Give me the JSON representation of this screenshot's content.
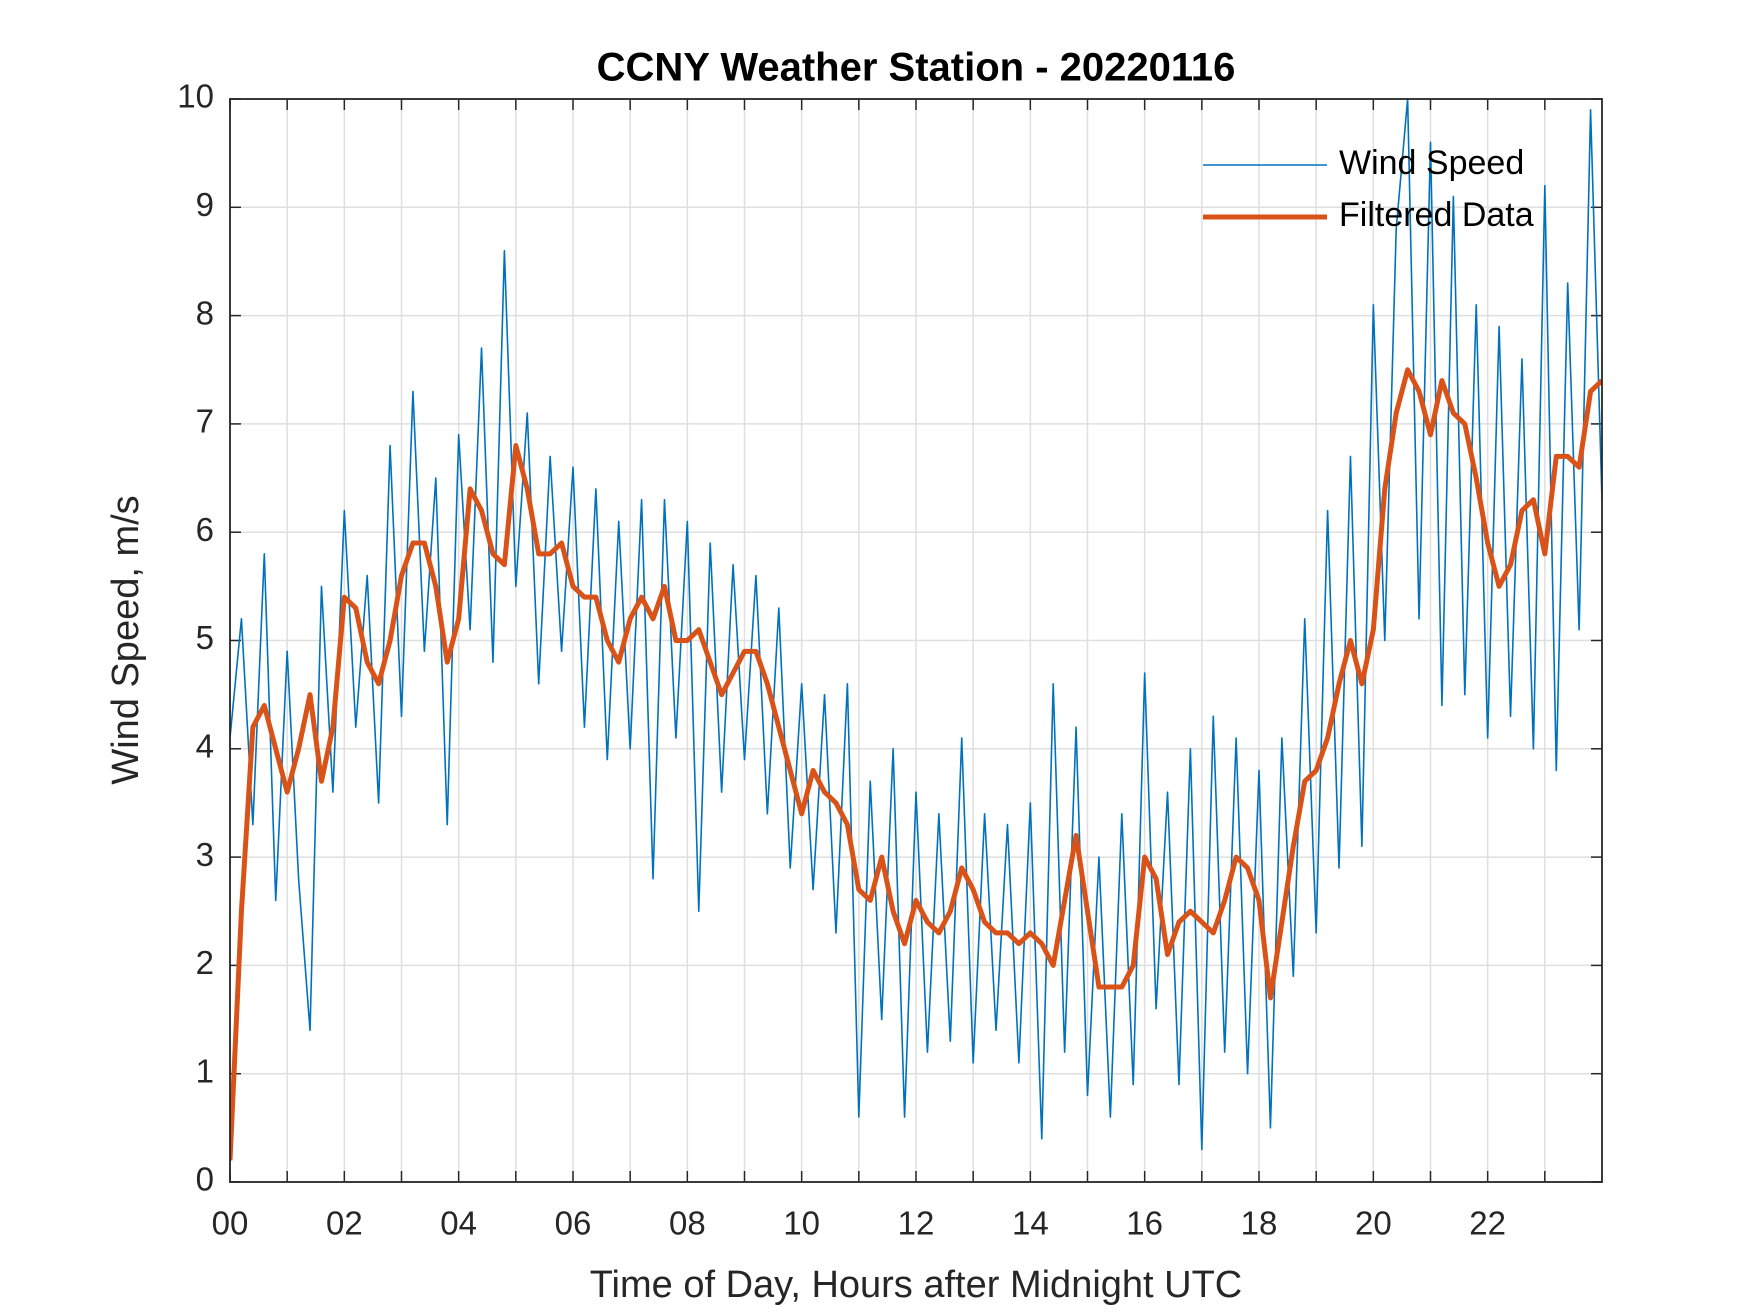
{
  "chart_data": {
    "type": "line",
    "title": "CCNY Weather Station - 20220116",
    "x_label": "Time of Day, Hours after Midnight UTC",
    "y_label": "Wind Speed, m/s",
    "xlim": [
      0,
      24
    ],
    "ylim": [
      0,
      10
    ],
    "xticks": [
      {
        "value": 0,
        "label": "00"
      },
      {
        "value": 2,
        "label": "02"
      },
      {
        "value": 4,
        "label": "04"
      },
      {
        "value": 6,
        "label": "06"
      },
      {
        "value": 8,
        "label": "08"
      },
      {
        "value": 10,
        "label": "10"
      },
      {
        "value": 12,
        "label": "12"
      },
      {
        "value": 14,
        "label": "14"
      },
      {
        "value": 16,
        "label": "16"
      },
      {
        "value": 18,
        "label": "18"
      },
      {
        "value": 20,
        "label": "20"
      },
      {
        "value": 22,
        "label": "22"
      }
    ],
    "xminorticks": [
      1,
      3,
      5,
      7,
      9,
      11,
      13,
      15,
      17,
      19,
      21,
      23
    ],
    "yticks": [
      0,
      1,
      2,
      3,
      4,
      5,
      6,
      7,
      8,
      9,
      10
    ],
    "grid": true,
    "legend_position": "upper right",
    "x": [
      0,
      0.2,
      0.4,
      0.6,
      0.8,
      1,
      1.2,
      1.4,
      1.6,
      1.8,
      2,
      2.2,
      2.4,
      2.6,
      2.8,
      3,
      3.2,
      3.4,
      3.6,
      3.8,
      4,
      4.2,
      4.4,
      4.6,
      4.8,
      5,
      5.2,
      5.4,
      5.6,
      5.8,
      6,
      6.2,
      6.4,
      6.6,
      6.8,
      7,
      7.2,
      7.4,
      7.6,
      7.8,
      8,
      8.2,
      8.4,
      8.6,
      8.8,
      9,
      9.2,
      9.4,
      9.6,
      9.8,
      10,
      10.2,
      10.4,
      10.6,
      10.8,
      11,
      11.2,
      11.4,
      11.6,
      11.8,
      12,
      12.2,
      12.4,
      12.6,
      12.8,
      13,
      13.2,
      13.4,
      13.6,
      13.8,
      14,
      14.2,
      14.4,
      14.6,
      14.8,
      15,
      15.2,
      15.4,
      15.6,
      15.8,
      16,
      16.2,
      16.4,
      16.6,
      16.8,
      17,
      17.2,
      17.4,
      17.6,
      17.8,
      18,
      18.2,
      18.4,
      18.6,
      18.8,
      19,
      19.2,
      19.4,
      19.6,
      19.8,
      20,
      20.2,
      20.4,
      20.6,
      20.8,
      21,
      21.2,
      21.4,
      21.6,
      21.8,
      22,
      22.2,
      22.4,
      22.6,
      22.8,
      23,
      23.2,
      23.4,
      23.6,
      23.8,
      24
    ],
    "series": [
      {
        "name": "Wind Speed",
        "color": "#0072bd",
        "width": 1.6,
        "values": [
          4.1,
          5.2,
          3.3,
          5.8,
          2.6,
          4.9,
          2.8,
          1.4,
          5.5,
          3.6,
          6.2,
          4.2,
          5.6,
          3.5,
          6.8,
          4.3,
          7.3,
          4.9,
          6.5,
          3.3,
          6.9,
          5.1,
          7.7,
          4.8,
          8.6,
          5.5,
          7.1,
          4.6,
          6.7,
          4.9,
          6.6,
          4.2,
          6.4,
          3.9,
          6.1,
          4.0,
          6.3,
          2.8,
          6.3,
          4.1,
          6.1,
          2.5,
          5.9,
          3.6,
          5.7,
          3.9,
          5.6,
          3.4,
          5.3,
          2.9,
          4.6,
          2.7,
          4.5,
          2.3,
          4.6,
          0.6,
          3.7,
          1.5,
          4.0,
          0.6,
          3.6,
          1.2,
          3.4,
          1.3,
          4.1,
          1.1,
          3.4,
          1.4,
          3.3,
          1.1,
          3.5,
          0.4,
          4.6,
          1.2,
          4.2,
          0.8,
          3.0,
          0.6,
          3.4,
          0.9,
          4.7,
          1.6,
          3.6,
          0.9,
          4.0,
          0.3,
          4.3,
          1.2,
          4.1,
          1.0,
          3.8,
          0.5,
          4.1,
          1.9,
          5.2,
          2.3,
          6.2,
          2.9,
          6.7,
          3.1,
          8.1,
          5.0,
          8.8,
          10.0,
          5.2,
          9.6,
          4.4,
          9.1,
          4.5,
          8.1,
          4.1,
          7.9,
          4.3,
          7.6,
          4.0,
          9.2,
          3.8,
          8.3,
          5.1,
          9.9,
          6.3
        ]
      },
      {
        "name": "Filtered Data",
        "color": "#d95319",
        "width": 5,
        "values": [
          0.2,
          2.5,
          4.2,
          4.4,
          4.0,
          3.6,
          4.0,
          4.5,
          3.7,
          4.2,
          5.4,
          5.3,
          4.8,
          4.6,
          5.0,
          5.6,
          5.9,
          5.9,
          5.5,
          4.8,
          5.2,
          6.4,
          6.2,
          5.8,
          5.7,
          6.8,
          6.4,
          5.8,
          5.8,
          5.9,
          5.5,
          5.4,
          5.4,
          5.0,
          4.8,
          5.2,
          5.4,
          5.2,
          5.5,
          5.0,
          5.0,
          5.1,
          4.8,
          4.5,
          4.7,
          4.9,
          4.9,
          4.6,
          4.2,
          3.8,
          3.4,
          3.8,
          3.6,
          3.5,
          3.3,
          2.7,
          2.6,
          3.0,
          2.5,
          2.2,
          2.6,
          2.4,
          2.3,
          2.5,
          2.9,
          2.7,
          2.4,
          2.3,
          2.3,
          2.2,
          2.3,
          2.2,
          2.0,
          2.6,
          3.2,
          2.5,
          1.8,
          1.8,
          1.8,
          2.0,
          3.0,
          2.8,
          2.1,
          2.4,
          2.5,
          2.4,
          2.3,
          2.6,
          3.0,
          2.9,
          2.6,
          1.7,
          2.4,
          3.1,
          3.7,
          3.8,
          4.1,
          4.6,
          5.0,
          4.6,
          5.1,
          6.4,
          7.1,
          7.5,
          7.3,
          6.9,
          7.4,
          7.1,
          7.0,
          6.5,
          5.9,
          5.5,
          5.7,
          6.2,
          6.3,
          5.8,
          6.7,
          6.7,
          6.6,
          7.3,
          7.4
        ]
      }
    ]
  }
}
